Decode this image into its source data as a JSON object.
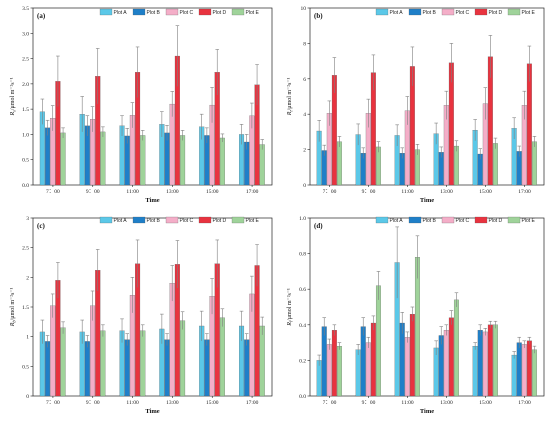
{
  "figure": {
    "colors": [
      "#5bc8e8",
      "#1f7fc8",
      "#f4aec8",
      "#e8333f",
      "#9fd39a"
    ],
    "errorbar_color": "#7f7f7f"
  },
  "chart_data": [
    {
      "type": "bar",
      "panel": "(a)",
      "xlabel": "Time",
      "ylabel": "R_s/μmol m⁻²s⁻¹",
      "ylabel_main": "R",
      "ylabel_sub": "s",
      "ylabel_rest": "/μmol m⁻²s⁻¹",
      "ylim": [
        0,
        3.5
      ],
      "yticks": [
        "0.0",
        "0.5",
        "1.0",
        "1.5",
        "2.0",
        "2.5",
        "3.0",
        "3.5"
      ],
      "categories": [
        "7：00",
        "9：00",
        "11:00",
        "13:00",
        "15:00",
        "17:00"
      ],
      "legend": [
        "Plot A",
        "Plot B",
        "Plot C",
        "Plot D",
        "Plot E"
      ],
      "series": [
        {
          "name": "Plot A",
          "values": [
            1.45,
            1.4,
            1.17,
            1.2,
            1.15,
            1.0
          ],
          "errors": [
            0.25,
            0.35,
            0.2,
            0.25,
            0.25,
            0.2
          ]
        },
        {
          "name": "Plot B",
          "values": [
            1.13,
            1.17,
            0.97,
            1.03,
            0.98,
            0.85
          ],
          "errors": [
            0.15,
            0.2,
            0.15,
            0.15,
            0.15,
            0.15
          ]
        },
        {
          "name": "Plot C",
          "values": [
            1.32,
            1.3,
            1.38,
            1.6,
            1.58,
            1.37
          ],
          "errors": [
            0.25,
            0.25,
            0.25,
            0.25,
            0.35,
            0.25
          ]
        },
        {
          "name": "Plot D",
          "values": [
            2.05,
            2.15,
            2.23,
            2.55,
            2.23,
            1.98
          ],
          "errors": [
            0.5,
            0.55,
            0.5,
            0.6,
            0.45,
            0.4
          ]
        },
        {
          "name": "Plot E",
          "values": [
            1.03,
            1.05,
            0.98,
            0.98,
            0.93,
            0.8
          ],
          "errors": [
            0.1,
            0.1,
            0.1,
            0.1,
            0.08,
            0.1
          ]
        }
      ]
    },
    {
      "type": "bar",
      "panel": "(b)",
      "xlabel": "Time",
      "ylabel": "R_t/μmol m⁻²s⁻¹",
      "ylabel_main": "R",
      "ylabel_sub": "t",
      "ylabel_rest": "/μmol m⁻²s⁻¹",
      "ylim": [
        0,
        10
      ],
      "yticks": [
        "0",
        "2",
        "4",
        "6",
        "8",
        "10"
      ],
      "categories": [
        "7：00",
        "9：00",
        "11:00",
        "13:00",
        "15:00",
        "17:00"
      ],
      "legend": [
        "Plot A",
        "Plot B",
        "Plot C",
        "Plot D",
        "Plot E"
      ],
      "series": [
        {
          "name": "Plot A",
          "values": [
            3.05,
            2.85,
            2.8,
            2.9,
            3.1,
            3.2
          ],
          "errors": [
            0.6,
            0.6,
            0.6,
            0.6,
            0.6,
            0.6
          ]
        },
        {
          "name": "Plot B",
          "values": [
            1.95,
            1.8,
            1.8,
            1.85,
            1.75,
            1.9
          ],
          "errors": [
            0.3,
            0.3,
            0.3,
            0.3,
            0.3,
            0.3
          ]
        },
        {
          "name": "Plot C",
          "values": [
            4.05,
            4.05,
            4.2,
            4.5,
            4.6,
            4.5
          ],
          "errors": [
            0.7,
            0.8,
            0.8,
            0.8,
            0.9,
            0.8
          ]
        },
        {
          "name": "Plot D",
          "values": [
            6.2,
            6.35,
            6.7,
            6.9,
            7.25,
            6.85
          ],
          "errors": [
            1.0,
            1.0,
            1.1,
            1.1,
            1.2,
            1.0
          ]
        },
        {
          "name": "Plot E",
          "values": [
            2.45,
            2.15,
            2.0,
            2.2,
            2.35,
            2.45
          ],
          "errors": [
            0.3,
            0.3,
            0.3,
            0.3,
            0.3,
            0.3
          ]
        }
      ]
    },
    {
      "type": "bar",
      "panel": "(c)",
      "xlabel": "Time",
      "ylabel": "R_b/μmol m⁻²s⁻¹",
      "ylabel_main": "R",
      "ylabel_sub": "b",
      "ylabel_rest": "/μmol m⁻²s⁻¹",
      "ylim": [
        0,
        3
      ],
      "yticks": [
        "0",
        "0.5",
        "1",
        "1.5",
        "2",
        "2.5",
        "3"
      ],
      "categories": [
        "7：00",
        "9：00",
        "11:00",
        "13:00",
        "15:00",
        "17:00"
      ],
      "legend": [
        "Plot A",
        "Plot B",
        "Plot C",
        "Plot D",
        "Plot E"
      ],
      "series": [
        {
          "name": "Plot A",
          "values": [
            1.08,
            1.08,
            1.1,
            1.13,
            1.18,
            1.18
          ],
          "errors": [
            0.2,
            0.2,
            0.2,
            0.25,
            0.25,
            0.25
          ]
        },
        {
          "name": "Plot B",
          "values": [
            0.92,
            0.92,
            0.95,
            0.95,
            0.95,
            0.95
          ],
          "errors": [
            0.1,
            0.1,
            0.1,
            0.1,
            0.1,
            0.1
          ]
        },
        {
          "name": "Plot C",
          "values": [
            1.52,
            1.52,
            1.7,
            1.9,
            1.68,
            1.72
          ],
          "errors": [
            0.2,
            0.25,
            0.3,
            0.3,
            0.3,
            0.3
          ]
        },
        {
          "name": "Plot D",
          "values": [
            1.95,
            2.12,
            2.23,
            2.22,
            2.23,
            2.2
          ],
          "errors": [
            0.3,
            0.35,
            0.4,
            0.4,
            0.4,
            0.35
          ]
        },
        {
          "name": "Plot E",
          "values": [
            1.15,
            1.1,
            1.1,
            1.27,
            1.32,
            1.18
          ],
          "errors": [
            0.1,
            0.1,
            0.1,
            0.15,
            0.15,
            0.15
          ]
        }
      ]
    },
    {
      "type": "bar",
      "panel": "(d)",
      "xlabel": "Time",
      "ylabel": "R_l/μmol m⁻²s⁻¹",
      "ylabel_main": "R",
      "ylabel_sub": "l",
      "ylabel_rest": "/μmol m⁻²s⁻¹",
      "ylim": [
        0,
        1.0
      ],
      "yticks": [
        "0.0",
        "0.2",
        "0.4",
        "0.6",
        "0.8",
        "1.0"
      ],
      "categories": [
        "7：00",
        "9：00",
        "11:00",
        "13:00",
        "15:00",
        "17:00"
      ],
      "legend": [
        "Plot A",
        "Plot B",
        "Plot C",
        "Plot D",
        "Plot E"
      ],
      "series": [
        {
          "name": "Plot A",
          "values": [
            0.2,
            0.26,
            0.75,
            0.27,
            0.28,
            0.23
          ],
          "errors": [
            0.03,
            0.03,
            0.2,
            0.04,
            0.02,
            0.02
          ]
        },
        {
          "name": "Plot B",
          "values": [
            0.39,
            0.39,
            0.41,
            0.34,
            0.37,
            0.3
          ],
          "errors": [
            0.05,
            0.05,
            0.06,
            0.05,
            0.03,
            0.03
          ]
        },
        {
          "name": "Plot C",
          "values": [
            0.29,
            0.3,
            0.33,
            0.37,
            0.36,
            0.29
          ],
          "errors": [
            0.03,
            0.03,
            0.03,
            0.03,
            0.02,
            0.02
          ]
        },
        {
          "name": "Plot D",
          "values": [
            0.37,
            0.41,
            0.46,
            0.44,
            0.4,
            0.31
          ],
          "errors": [
            0.03,
            0.04,
            0.04,
            0.04,
            0.02,
            0.02
          ]
        },
        {
          "name": "Plot E",
          "values": [
            0.28,
            0.62,
            0.78,
            0.54,
            0.4,
            0.26
          ],
          "errors": [
            0.02,
            0.08,
            0.12,
            0.04,
            0.02,
            0.02
          ]
        }
      ]
    }
  ]
}
